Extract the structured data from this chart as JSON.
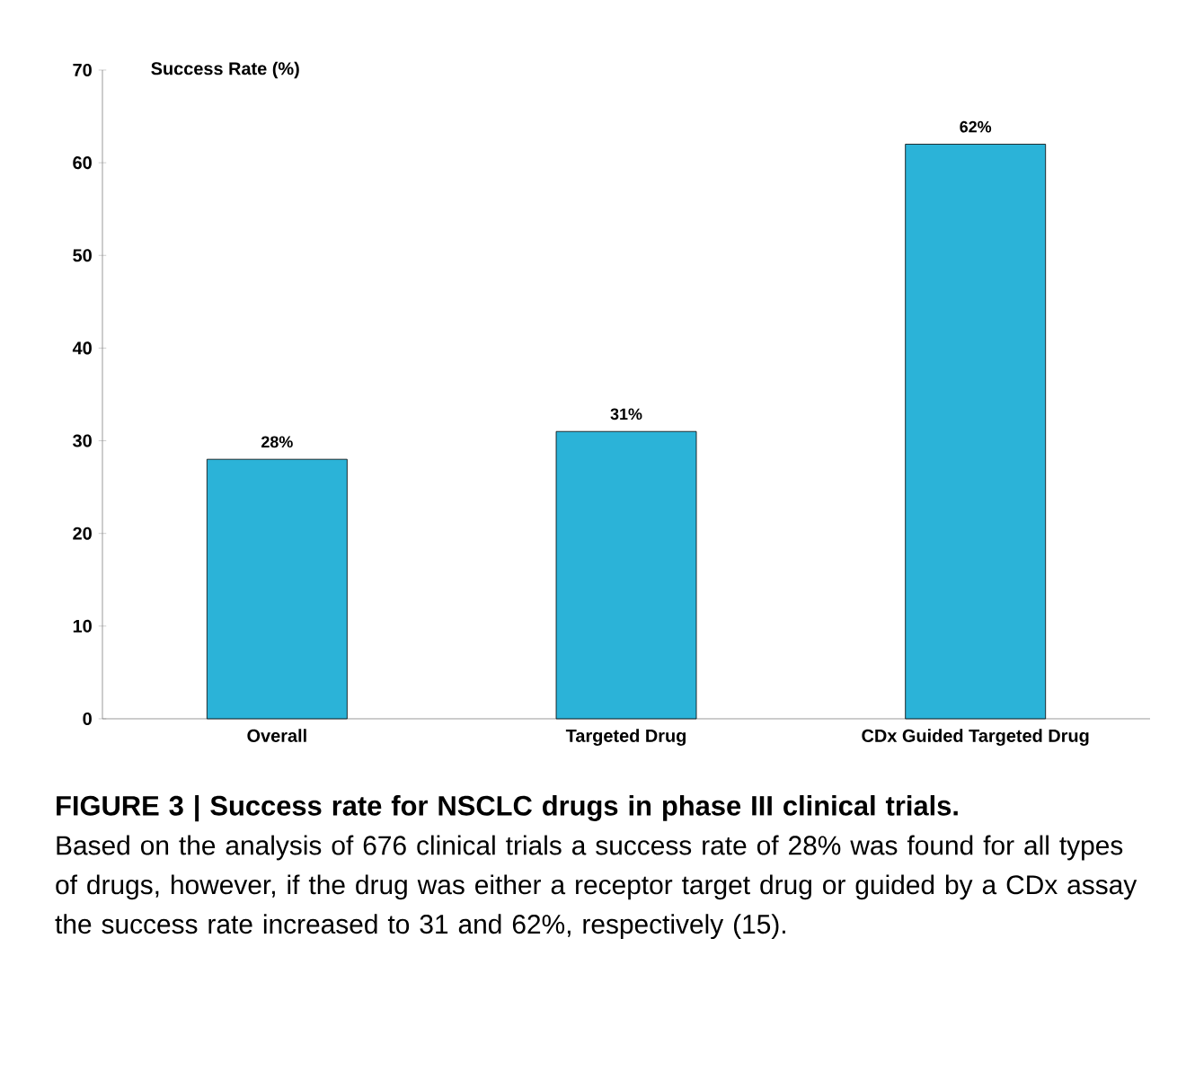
{
  "chart_data": {
    "type": "bar",
    "title": "**FIGURE 3 | Success rate for NSCLC drugs in phase III clinical trials**.",
    "ylabel": "Success Rate (%)",
    "categories": [
      "Overall",
      "Targeted Drug",
      "CDx Guided Targeted Drug"
    ],
    "values": [
      28,
      31,
      62
    ],
    "value_labels": [
      "28%",
      "31%",
      "62%"
    ],
    "color": "#2bb3d8",
    "ylim": [
      0,
      70
    ],
    "yticks": [
      0,
      10,
      20,
      30,
      40,
      50,
      60,
      70
    ],
    "annotations": [
      "Based on the analysis of 676 clinical trials a success rate of 28% was found for all types of drugs, however, if the drug was either a receptor target drug or guided by a CDx assay the success rate increased to 31 and 62%, respectively (15)."
    ]
  }
}
